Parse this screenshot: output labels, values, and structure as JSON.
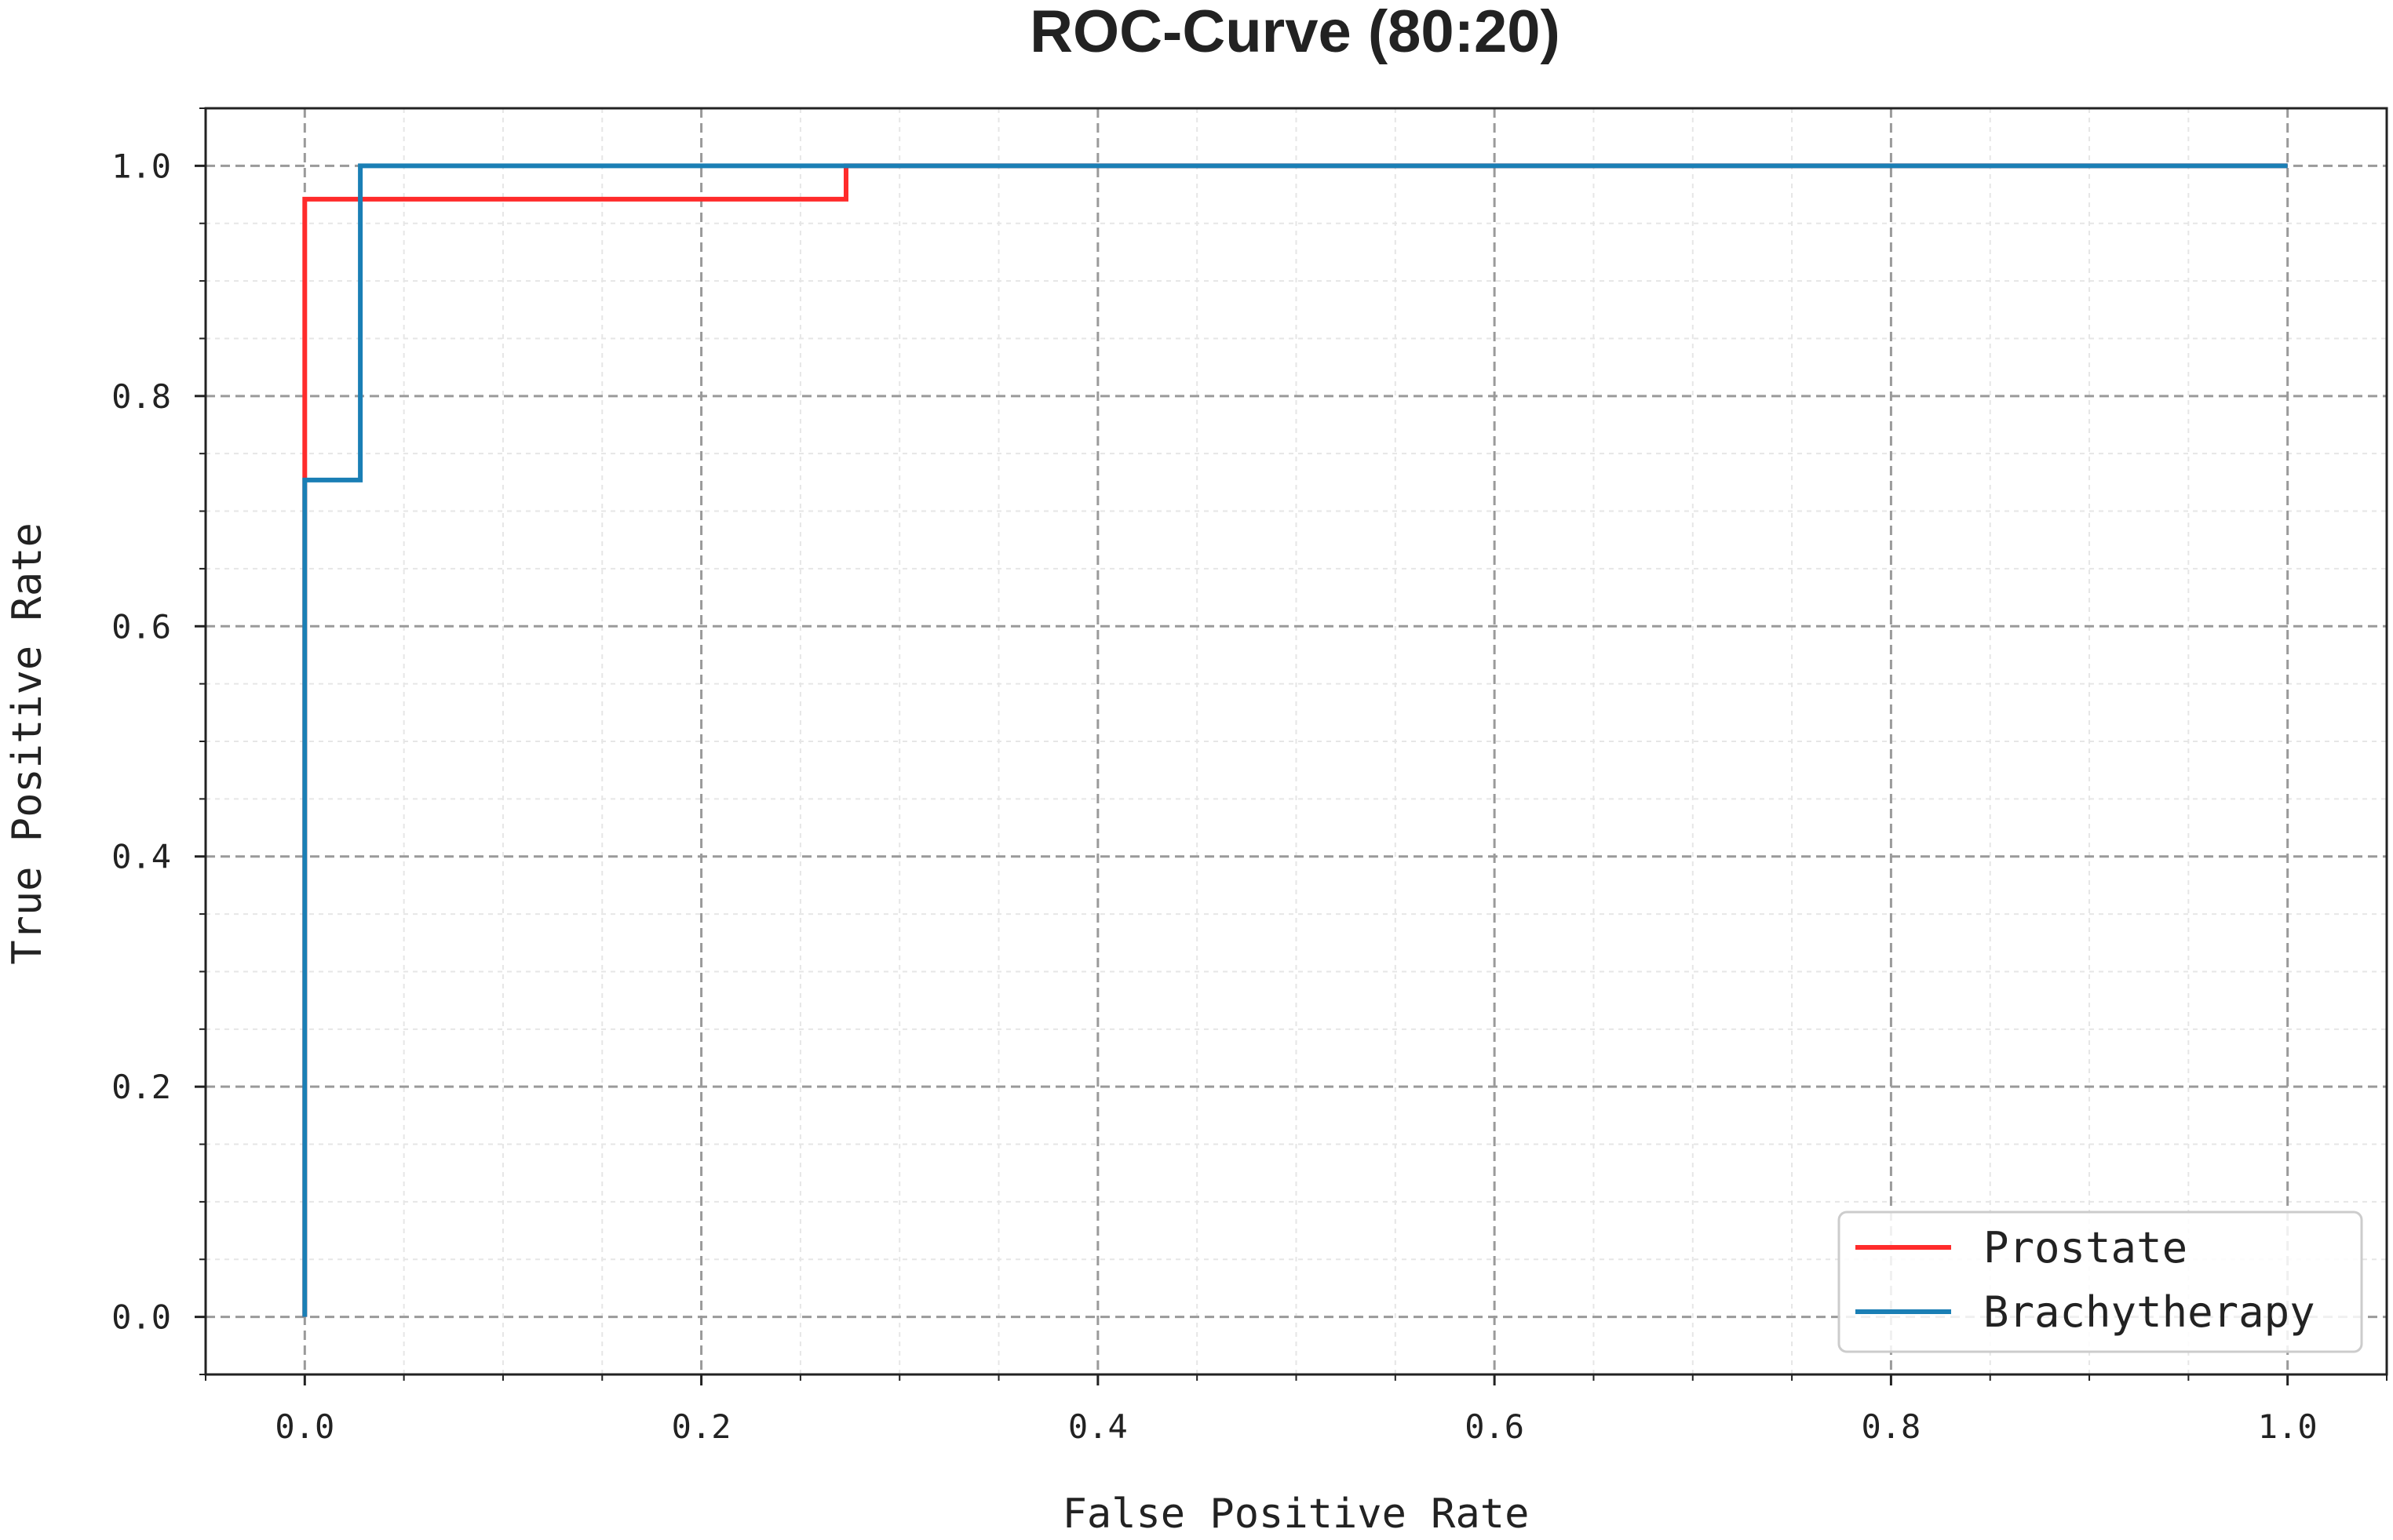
{
  "chart_data": {
    "type": "line",
    "title": "ROC-Curve (80:20)",
    "xlabel": "False Positive Rate",
    "ylabel": "True Positive Rate",
    "xlim": [
      -0.05,
      1.05
    ],
    "ylim": [
      -0.05,
      1.05
    ],
    "x_ticks": [
      "0.0",
      "0.2",
      "0.4",
      "0.6",
      "0.8",
      "1.0"
    ],
    "y_ticks": [
      "0.0",
      "0.2",
      "0.4",
      "0.6",
      "0.8",
      "1.0"
    ],
    "x_tick_values": [
      0.0,
      0.2,
      0.4,
      0.6,
      0.8,
      1.0
    ],
    "y_tick_values": [
      0.0,
      0.2,
      0.4,
      0.6,
      0.8,
      1.0
    ],
    "grid": true,
    "minor_grid": true,
    "legend_position": "bottom-right",
    "series": [
      {
        "name": "Prostate",
        "color": "#ff2b2b",
        "x": [
          0.0,
          0.0,
          0.0,
          0.273,
          0.273,
          1.0
        ],
        "y": [
          0.0,
          0.727,
          0.971,
          0.971,
          1.0,
          1.0
        ]
      },
      {
        "name": "Brachytherapy",
        "color": "#1a7fb5",
        "x": [
          0.0,
          0.0,
          0.028,
          0.028,
          1.0
        ],
        "y": [
          0.0,
          0.727,
          0.727,
          1.0,
          1.0
        ]
      }
    ]
  }
}
